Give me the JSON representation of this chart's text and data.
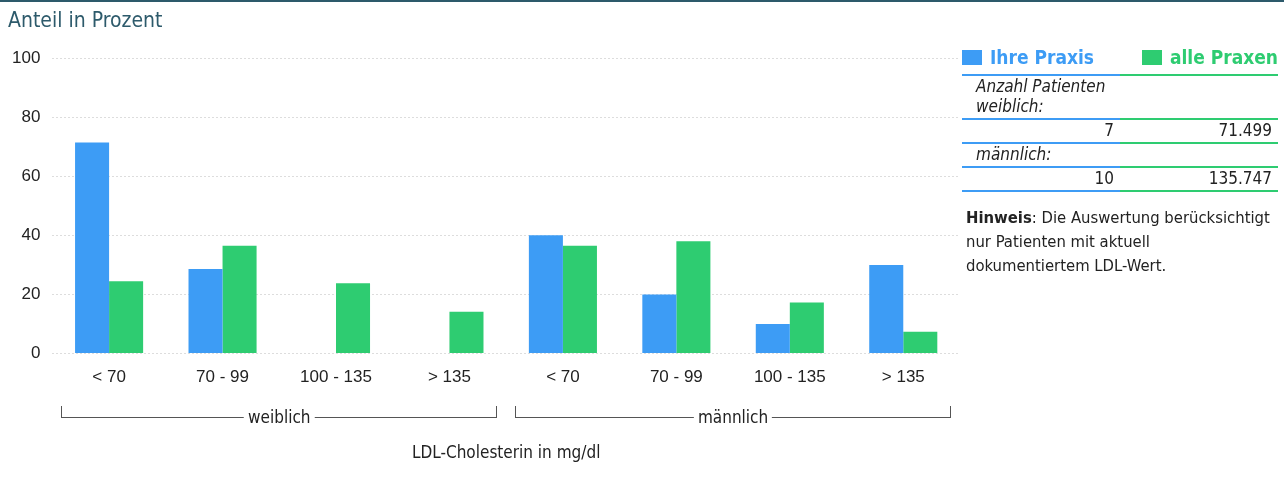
{
  "chart_data": {
    "type": "bar",
    "title": "Anteil in Prozent",
    "xlabel": "LDL-Cholesterin in mg/dl",
    "categories": [
      "< 70",
      "70 - 99",
      "100 - 135",
      "> 135",
      "< 70",
      "70 - 99",
      "100 - 135",
      "> 135"
    ],
    "series": [
      {
        "name": "Ihre Praxis",
        "color": "#3d9cf5",
        "values": [
          71.4,
          28.6,
          0,
          0,
          40,
          20,
          10,
          30
        ]
      },
      {
        "name": "alle Praxen",
        "color": "#2ecc71",
        "values": [
          24.5,
          36.5,
          23.8,
          14.2,
          36.5,
          38,
          17.3,
          7.4
        ]
      }
    ],
    "ylim": [
      0,
      100
    ],
    "yticks": [
      0,
      20,
      40,
      60,
      80,
      100
    ],
    "grid": "y",
    "legend": "top right",
    "annotations": [
      "weiblich",
      "männlich",
      "Anzahl Patienten weiblich:",
      "7",
      "71.499",
      "männlich:",
      "10",
      "135.747",
      "Hinweis: Die Auswertung berücksichtigt nur Patienten mit aktuell dokumentiertem LDL-Wert."
    ]
  }
}
